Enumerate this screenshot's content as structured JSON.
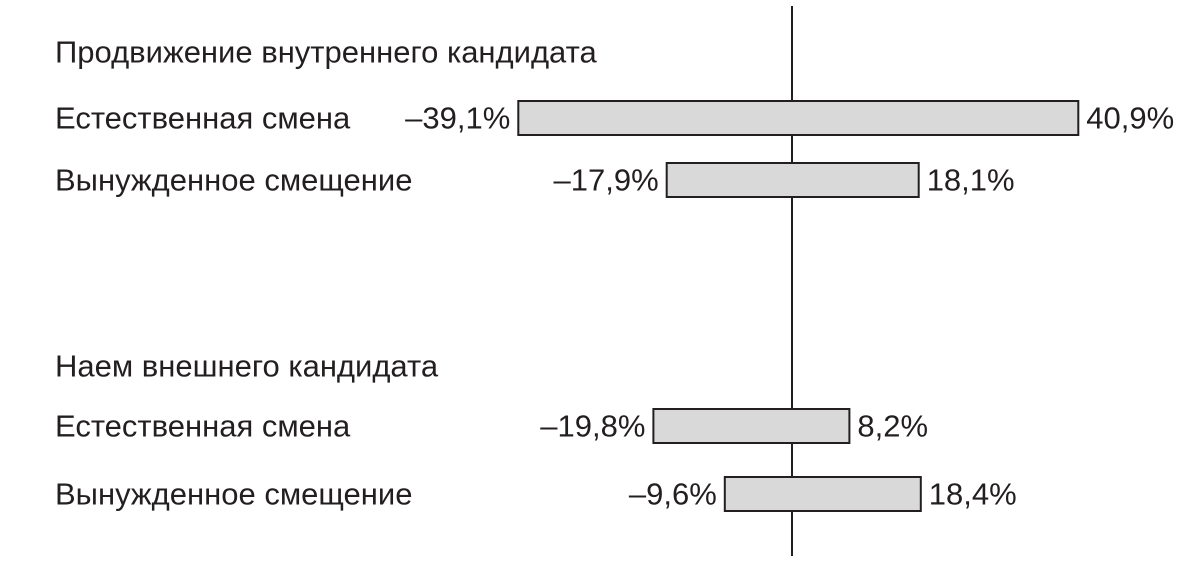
{
  "chart_data": {
    "type": "bar",
    "orientation": "horizontal",
    "diverging": true,
    "bar_color": "#d9d9d9",
    "bar_outline_color": "#231f20",
    "axis_color": "#231f20",
    "grid": false,
    "legend": "none",
    "groups": [
      {
        "title": "Продвижение внутреннего кандидата",
        "rows": [
          {
            "label": "Естественная смена",
            "negative": -39.1,
            "positive": 40.9,
            "negative_label": "–39,1%",
            "positive_label": "40,9%"
          },
          {
            "label": "Вынужденное смещение",
            "negative": -17.9,
            "positive": 18.1,
            "negative_label": "–17,9%",
            "positive_label": "18,1%"
          }
        ]
      },
      {
        "title": "Наем внешнего кандидата",
        "rows": [
          {
            "label": "Естественная смена",
            "negative": -19.8,
            "positive": 8.2,
            "negative_label": "–19,8%",
            "positive_label": "8,2%"
          },
          {
            "label": "Вынужденное смещение",
            "negative": -9.6,
            "positive": 18.4,
            "negative_label": "–9,6%",
            "positive_label": "18,4%"
          }
        ]
      }
    ]
  }
}
